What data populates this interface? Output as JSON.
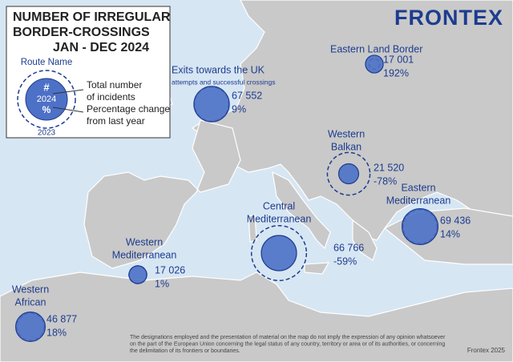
{
  "title_lines": [
    "NUMBER OF IRREGULAR",
    "BORDER-CROSSINGS",
    "JAN - DEC 2024"
  ],
  "logo": "FRONTEX",
  "legend": {
    "route_name": "Route Name",
    "hash": "#",
    "year_current": "2024",
    "percent": "%",
    "year_previous": "2023",
    "total_lines": [
      "Total number",
      "of incidents"
    ],
    "change_lines": [
      "Percentage change",
      "from last year"
    ]
  },
  "routes": [
    {
      "name_lines": [
        "Eastern Land Border"
      ],
      "values": [
        17001,
        192
      ],
      "value_labels": [
        "17 001",
        "192%"
      ]
    },
    {
      "name_lines": [
        "Exits towards the UK"
      ],
      "subtitle": "attempts and successful crossings",
      "values": [
        67552,
        9
      ],
      "value_labels": [
        "67 552",
        "9%"
      ]
    },
    {
      "name_lines": [
        "Western",
        "Balkan"
      ],
      "values": [
        21520,
        -78
      ],
      "value_labels": [
        "21 520",
        "-78%"
      ]
    },
    {
      "name_lines": [
        "Eastern",
        "Mediterranean"
      ],
      "values": [
        69436,
        14
      ],
      "value_labels": [
        "69 436",
        "14%"
      ]
    },
    {
      "name_lines": [
        "Central",
        "Mediterranean"
      ],
      "values": [
        66766,
        -59
      ],
      "value_labels": [
        "66 766",
        "-59%"
      ]
    },
    {
      "name_lines": [
        "Western",
        "Mediterranean"
      ],
      "values": [
        17026,
        1
      ],
      "value_labels": [
        "17 026",
        "1%"
      ]
    },
    {
      "name_lines": [
        "Western",
        "African"
      ],
      "values": [
        46877,
        18
      ],
      "value_labels": [
        "46 877",
        "18%"
      ]
    }
  ],
  "disclaimer_lines": [
    "The designations employed and the presentation of material on the map do not imply the expression of any opinion whatsoever",
    "on the part of the European Union concerning the legal status of any country, territory or area or of its authorities, or concerning",
    "the delimitation of its frontiers or boundaries."
  ],
  "credit": "Frontex 2025"
}
